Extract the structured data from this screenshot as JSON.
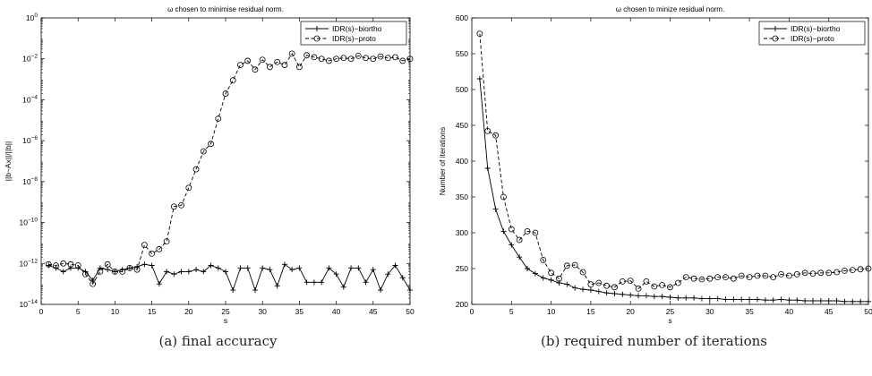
{
  "captions": {
    "a": "(a) final accuracy",
    "b": "(b) required number of iterations"
  },
  "chart_data": [
    {
      "type": "line",
      "title": "ω chosen to minimise residual norm.",
      "xlabel": "s",
      "ylabel": "||b−Ax||/||b||",
      "xlim": [
        0,
        50
      ],
      "ylim": [
        1e-14,
        1
      ],
      "yscale": "log",
      "xticks": [
        "0",
        "5",
        "10",
        "15",
        "20",
        "25",
        "30",
        "35",
        "40",
        "45",
        "50"
      ],
      "yticks": [
        {
          "v": 1e-14,
          "base": "10",
          "exp": "−14"
        },
        {
          "v": 1e-12,
          "base": "10",
          "exp": "−12"
        },
        {
          "v": 1e-10,
          "base": "10",
          "exp": "−10"
        },
        {
          "v": 1e-08,
          "base": "10",
          "exp": "−8"
        },
        {
          "v": 1e-06,
          "base": "10",
          "exp": "−6"
        },
        {
          "v": 0.0001,
          "base": "10",
          "exp": "−4"
        },
        {
          "v": 0.01,
          "base": "10",
          "exp": "−2"
        },
        {
          "v": 1,
          "base": "10",
          "exp": "0"
        }
      ],
      "grid": false,
      "legend": "top-right",
      "x": [
        1,
        2,
        3,
        4,
        5,
        6,
        7,
        8,
        9,
        10,
        11,
        12,
        13,
        14,
        15,
        16,
        17,
        18,
        19,
        20,
        21,
        22,
        23,
        24,
        25,
        26,
        27,
        28,
        29,
        30,
        31,
        32,
        33,
        34,
        35,
        36,
        37,
        38,
        39,
        40,
        41,
        42,
        43,
        44,
        45,
        46,
        47,
        48,
        49,
        50
      ],
      "series": [
        {
          "name": "IDR(s)−biortho",
          "marker": "plus",
          "line": "solid",
          "color": "#000000",
          "values": [
            8e-13,
            6e-13,
            4e-13,
            6e-13,
            6e-13,
            4e-13,
            1.5e-13,
            6e-13,
            5e-13,
            4e-13,
            5e-13,
            6e-13,
            7e-13,
            9e-13,
            8e-13,
            1e-13,
            4e-13,
            3e-13,
            4e-13,
            4e-13,
            5e-13,
            4e-13,
            8e-13,
            6e-13,
            4e-13,
            5e-14,
            6e-13,
            6e-13,
            5e-14,
            6e-13,
            5e-13,
            8e-14,
            9e-13,
            5e-13,
            6e-13,
            1.2e-13,
            1.2e-13,
            1.2e-13,
            6e-13,
            3e-13,
            7e-14,
            6e-13,
            6e-13,
            1.2e-13,
            5e-13,
            5e-14,
            3e-13,
            8e-13,
            2e-13,
            5e-14
          ]
        },
        {
          "name": "IDR(s)−proto",
          "marker": "circle",
          "line": "dashed",
          "color": "#000000",
          "values": [
            9e-13,
            8e-13,
            1e-12,
            9e-13,
            8e-13,
            3e-13,
            1e-13,
            4e-13,
            9e-13,
            4e-13,
            4e-13,
            6e-13,
            5e-13,
            8e-12,
            3e-12,
            5e-12,
            1.2e-11,
            6e-10,
            7e-10,
            5e-09,
            4e-08,
            3e-07,
            7e-07,
            1.2e-05,
            0.0002,
            0.0009,
            0.005,
            0.008,
            0.003,
            0.009,
            0.004,
            0.007,
            0.005,
            0.018,
            0.004,
            0.015,
            0.012,
            0.01,
            0.008,
            0.01,
            0.011,
            0.01,
            0.014,
            0.011,
            0.01,
            0.013,
            0.011,
            0.012,
            0.008,
            0.01
          ]
        }
      ]
    },
    {
      "type": "line",
      "title": "ω chosen to minize residual norm.",
      "xlabel": "s",
      "ylabel": "Number of iterations",
      "xlim": [
        0,
        50
      ],
      "ylim": [
        200,
        600
      ],
      "xticks": [
        "0",
        "5",
        "10",
        "15",
        "20",
        "25",
        "30",
        "35",
        "40",
        "45",
        "50"
      ],
      "yticks": [
        "200",
        "250",
        "300",
        "350",
        "400",
        "450",
        "500",
        "550",
        "600"
      ],
      "grid": false,
      "legend": "top-right",
      "x": [
        1,
        2,
        3,
        4,
        5,
        6,
        7,
        8,
        9,
        10,
        11,
        12,
        13,
        14,
        15,
        16,
        17,
        18,
        19,
        20,
        21,
        22,
        23,
        24,
        25,
        26,
        27,
        28,
        29,
        30,
        31,
        32,
        33,
        34,
        35,
        36,
        37,
        38,
        39,
        40,
        41,
        42,
        43,
        44,
        45,
        46,
        47,
        48,
        49,
        50
      ],
      "series": [
        {
          "name": "IDR(s)−biortho",
          "marker": "plus",
          "line": "solid",
          "color": "#000000",
          "values": [
            515,
            390,
            333,
            302,
            283,
            266,
            250,
            243,
            237,
            234,
            230,
            228,
            223,
            221,
            220,
            218,
            216,
            215,
            214,
            213,
            212,
            212,
            211,
            211,
            210,
            209,
            209,
            209,
            208,
            208,
            208,
            207,
            207,
            207,
            207,
            207,
            206,
            206,
            207,
            206,
            206,
            205,
            205,
            205,
            205,
            205,
            204,
            204,
            204,
            204
          ]
        },
        {
          "name": "IDR(s)−proto",
          "marker": "circle",
          "line": "dashed",
          "color": "#000000",
          "values": [
            578,
            442,
            436,
            350,
            305,
            290,
            302,
            300,
            262,
            244,
            236,
            254,
            255,
            245,
            228,
            230,
            226,
            224,
            232,
            233,
            222,
            232,
            225,
            227,
            224,
            230,
            238,
            236,
            235,
            236,
            238,
            238,
            236,
            240,
            238,
            240,
            240,
            238,
            242,
            240,
            242,
            244,
            243,
            244,
            244,
            245,
            247,
            248,
            249,
            250
          ]
        }
      ]
    }
  ]
}
